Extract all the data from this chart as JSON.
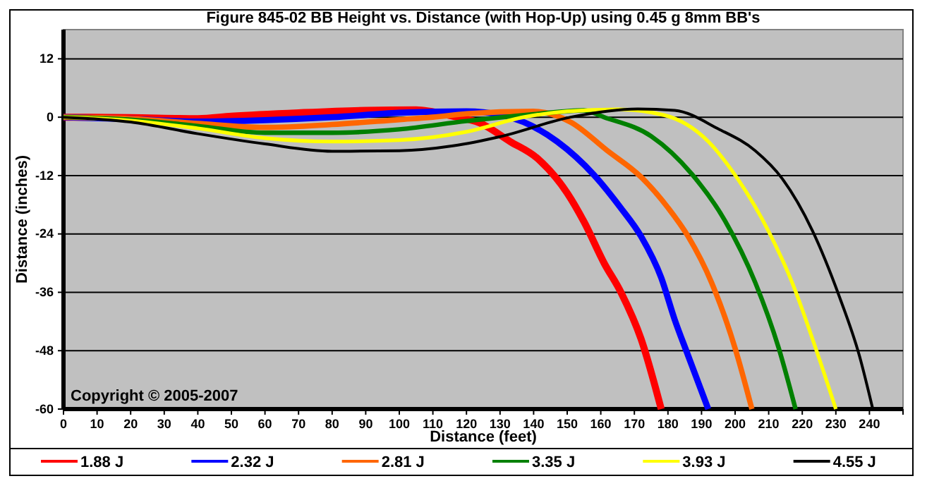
{
  "chart_data": {
    "type": "line",
    "title": "Figure 845-02  BB Height vs. Distance (with Hop-Up) using 0.45 g 8mm BB's",
    "xlabel": "Distance (feet)",
    "ylabel": "Distance (inches)",
    "annotations": [
      "Copyright © 2005-2007"
    ],
    "xlim": [
      0,
      250
    ],
    "xticks": [
      0,
      10,
      20,
      30,
      40,
      50,
      60,
      70,
      80,
      90,
      100,
      110,
      120,
      130,
      140,
      150,
      160,
      170,
      180,
      190,
      200,
      210,
      220,
      230,
      240,
      {
        "value": 250,
        "label": null
      }
    ],
    "ylim": [
      -60,
      18
    ],
    "yticks": [
      -60,
      -48,
      -36,
      -24,
      -12,
      0,
      12
    ],
    "grid": "y",
    "legend": "bottom",
    "marker": "none",
    "line_style": "solid",
    "series": [
      {
        "name": "1.88 J",
        "color": "#ff0000",
        "x": [
          0,
          20,
          40,
          50,
          70,
          90,
          105,
          116,
          124,
          133,
          141,
          150,
          155,
          161,
          166,
          172,
          178
        ],
        "values": [
          0,
          -0.1,
          -0.3,
          0.2,
          0.9,
          1.4,
          1.5,
          0.2,
          -1.2,
          -5,
          -8.4,
          -15.6,
          -21.5,
          -30,
          -36,
          -45.6,
          -60
        ]
      },
      {
        "name": "2.32 J",
        "color": "#0000ff",
        "x": [
          0,
          20,
          40,
          60,
          80,
          100,
          120,
          130,
          137,
          147,
          158,
          166,
          172,
          178,
          182,
          186,
          192
        ],
        "values": [
          0,
          -0.4,
          -0.9,
          -0.6,
          0,
          0.9,
          1.2,
          0.5,
          -1,
          -5,
          -11.9,
          -18.7,
          -24.5,
          -33,
          -41.6,
          -49,
          -60
        ]
      },
      {
        "name": "2.81 J",
        "color": "#ff6600",
        "x": [
          0,
          20,
          40,
          60,
          80,
          100,
          110,
          120,
          140,
          151,
          162,
          172,
          180,
          186,
          193,
          200,
          205
        ],
        "values": [
          0,
          -0.3,
          -1.3,
          -2.1,
          -1.5,
          -0.5,
          0,
          0.7,
          1.2,
          -1,
          -6.9,
          -12.3,
          -18.6,
          -24.5,
          -34,
          -47.5,
          -60
        ]
      },
      {
        "name": "3.35 J",
        "color": "#008000",
        "x": [
          0,
          20,
          40,
          60,
          80,
          100,
          120,
          140,
          155,
          161,
          175,
          187,
          197,
          206,
          213,
          218
        ],
        "values": [
          0,
          -0.5,
          -1.8,
          -3.2,
          -3.2,
          -2.5,
          -0.8,
          0.6,
          1.4,
          0,
          -3.9,
          -11.6,
          -21.3,
          -34,
          -47.5,
          -60
        ]
      },
      {
        "name": "3.93 J",
        "color": "#ffff00",
        "x": [
          0,
          20,
          40,
          60,
          80,
          100,
          120,
          137,
          150,
          165,
          179,
          192,
          200,
          210,
          217,
          224,
          230
        ],
        "values": [
          0,
          -0.7,
          -2.3,
          -4.3,
          -5,
          -4.7,
          -3,
          0,
          1.2,
          1.6,
          0.4,
          -5,
          -11.9,
          -23.5,
          -34,
          -47.5,
          -60
        ]
      },
      {
        "name": "4.55 J",
        "color": "#000000",
        "x": [
          0,
          20,
          40,
          60,
          80,
          100,
          116,
          130,
          151,
          171,
          182,
          195,
          206,
          214,
          223,
          231,
          237,
          241
        ],
        "values": [
          0,
          -1,
          -3.4,
          -5.5,
          -7,
          -6.9,
          -5.9,
          -4,
          0,
          1.7,
          1.4,
          -2.4,
          -6.9,
          -12.6,
          -23.3,
          -36.8,
          -49,
          -60
        ]
      }
    ]
  }
}
